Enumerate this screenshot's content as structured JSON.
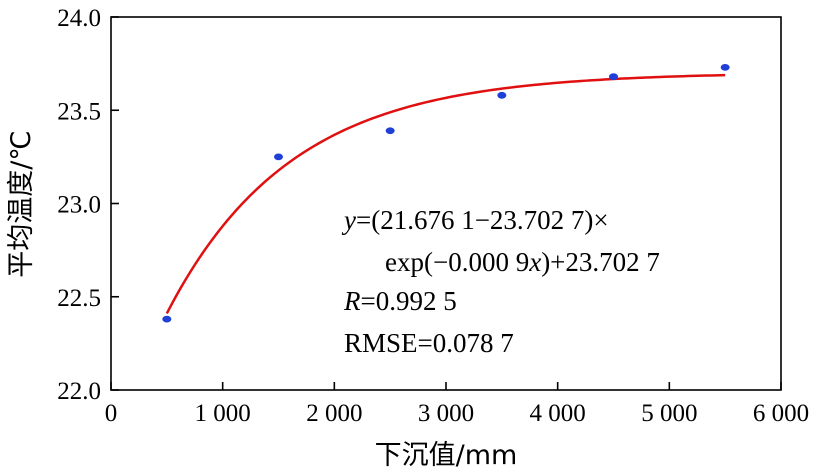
{
  "chart_data": {
    "type": "scatter",
    "xlabel": "下沉值/mm",
    "ylabel": "平均温度/℃",
    "xlim": [
      0,
      6000
    ],
    "ylim": [
      22.0,
      24.0
    ],
    "x_ticks": [
      0,
      1000,
      2000,
      3000,
      4000,
      5000,
      6000
    ],
    "x_tick_labels": [
      "0",
      "1 000",
      "2 000",
      "3 000",
      "4 000",
      "5 000",
      "6 000"
    ],
    "y_ticks": [
      22.0,
      22.5,
      23.0,
      23.5,
      24.0
    ],
    "y_tick_labels": [
      "22.0",
      "22.5",
      "23.0",
      "23.5",
      "24.0"
    ],
    "grid": false,
    "series": [
      {
        "kind": "points",
        "color": "#1f3fd6",
        "x": [
          500,
          1500,
          2500,
          3500,
          4500,
          5500
        ],
        "y": [
          22.38,
          23.25,
          23.39,
          23.58,
          23.68,
          23.73
        ]
      },
      {
        "kind": "fit-curve",
        "color": "#e01010",
        "model": "exponential",
        "params": {
          "a": 21.6761,
          "b": 23.7027,
          "k": 0.0009
        },
        "x_range": [
          500,
          5500
        ]
      }
    ],
    "annotations": {
      "eq_y": "y",
      "eq_line1_rest": "=(21.676 1−23.702 7)×",
      "eq_line2_pre": "exp(−0.000 9",
      "eq_line2_x": "x",
      "eq_line2_post": ")+23.702 7",
      "r_label": "R",
      "r_value": "=0.992 5",
      "rmse": "RMSE=0.078 7"
    }
  }
}
